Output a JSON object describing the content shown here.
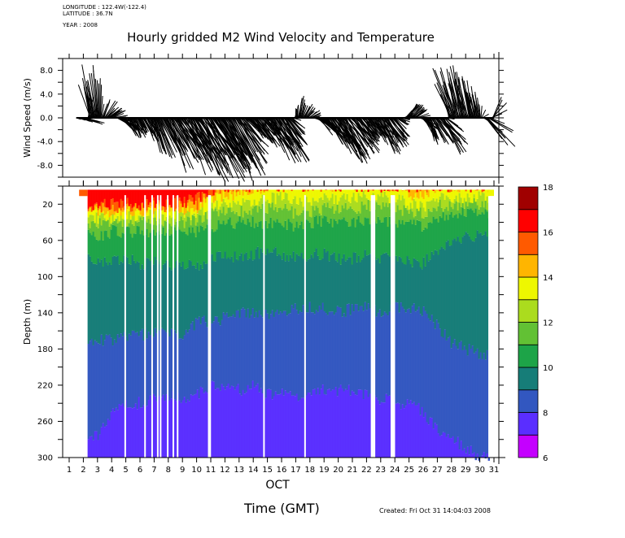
{
  "meta": {
    "longitude": "LONGITUDE : 122.4W(-122.4)",
    "latitude": "LATITUDE : 36.7N",
    "year": "YEAR : 2008"
  },
  "created": "Created: Fri Oct 31 14:04:03 2008",
  "chart_data": [
    {
      "type": "line",
      "subtype": "wind-stick-plot",
      "title": "Hourly gridded M2 Wind Velocity and Temperature",
      "ylabel": "Wind Speed (m/s)",
      "xlabel": "Time (GMT)",
      "ylim": [
        -10,
        10
      ],
      "yticks": [
        8.0,
        4.0,
        0.0,
        -4.0,
        -8.0
      ],
      "ytick_labels": [
        "8.0",
        "4.0",
        "0.0",
        "-4.0",
        "-8.0"
      ],
      "x_day_range": [
        0.5,
        31.5
      ],
      "description": "Hourly wind velocity sticks (u,v) originating from zero line; mostly southeastward (negative v) with northwesterly episodes near Oct 2-3 and Oct 28-31",
      "sticks_sampled": [
        {
          "day": 1.5,
          "u": 1.0,
          "v": -0.2
        },
        {
          "day": 2.2,
          "u": 2.5,
          "v": -1.0
        },
        {
          "day": 2.5,
          "u": -1.5,
          "v": 7.6
        },
        {
          "day": 2.8,
          "u": -1.0,
          "v": 6.0
        },
        {
          "day": 3.0,
          "u": -0.5,
          "v": 8.5
        },
        {
          "day": 3.3,
          "u": 0.5,
          "v": 3.0
        },
        {
          "day": 3.6,
          "u": 1.8,
          "v": 2.0
        },
        {
          "day": 4.0,
          "u": 2.0,
          "v": 1.0
        },
        {
          "day": 4.5,
          "u": 2.5,
          "v": -1.5
        },
        {
          "day": 5.0,
          "u": 1.5,
          "v": -2.5
        },
        {
          "day": 5.5,
          "u": 1.5,
          "v": -3.0
        },
        {
          "day": 6.0,
          "u": 1.0,
          "v": -2.0
        },
        {
          "day": 6.5,
          "u": 2.0,
          "v": -3.5
        },
        {
          "day": 7.0,
          "u": 1.5,
          "v": -5.5
        },
        {
          "day": 7.5,
          "u": 2.5,
          "v": -5.0
        },
        {
          "day": 8.0,
          "u": 3.0,
          "v": -7.5
        },
        {
          "day": 8.5,
          "u": 3.5,
          "v": -6.0
        },
        {
          "day": 9.0,
          "u": 3.5,
          "v": -7.0
        },
        {
          "day": 9.5,
          "u": 4.0,
          "v": -8.0
        },
        {
          "day": 10.0,
          "u": 4.5,
          "v": -8.5
        },
        {
          "day": 10.5,
          "u": 4.0,
          "v": -7.5
        },
        {
          "day": 11.0,
          "u": 4.5,
          "v": -8.5
        },
        {
          "day": 11.5,
          "u": 4.0,
          "v": -7.0
        },
        {
          "day": 12.0,
          "u": 4.0,
          "v": -8.0
        },
        {
          "day": 12.5,
          "u": 4.5,
          "v": -9.0
        },
        {
          "day": 13.0,
          "u": 3.5,
          "v": -6.0
        },
        {
          "day": 13.5,
          "u": 2.0,
          "v": -2.0
        },
        {
          "day": 14.0,
          "u": 3.0,
          "v": -4.0
        },
        {
          "day": 14.5,
          "u": 3.0,
          "v": -3.5
        },
        {
          "day": 15.0,
          "u": 3.5,
          "v": -5.5
        },
        {
          "day": 15.5,
          "u": 3.5,
          "v": -6.0
        },
        {
          "day": 16.0,
          "u": 3.5,
          "v": -6.5
        },
        {
          "day": 16.5,
          "u": 2.5,
          "v": -3.0
        },
        {
          "day": 17.0,
          "u": 0.0,
          "v": 1.5
        },
        {
          "day": 17.3,
          "u": 0.5,
          "v": 3.0
        },
        {
          "day": 17.6,
          "u": 1.0,
          "v": 2.0
        },
        {
          "day": 18.0,
          "u": 1.5,
          "v": 1.0
        },
        {
          "day": 18.5,
          "u": 2.5,
          "v": -2.0
        },
        {
          "day": 19.0,
          "u": 3.0,
          "v": -3.0
        },
        {
          "day": 19.5,
          "u": 3.5,
          "v": -5.5
        },
        {
          "day": 20.0,
          "u": 3.5,
          "v": -6.0
        },
        {
          "day": 20.5,
          "u": 3.5,
          "v": -6.5
        },
        {
          "day": 21.0,
          "u": 3.5,
          "v": -5.0
        },
        {
          "day": 21.5,
          "u": 2.5,
          "v": -3.5
        },
        {
          "day": 22.0,
          "u": 2.0,
          "v": -2.5
        },
        {
          "day": 22.5,
          "u": 2.5,
          "v": -3.5
        },
        {
          "day": 23.0,
          "u": 3.0,
          "v": -5.0
        },
        {
          "day": 23.5,
          "u": 2.5,
          "v": -4.0
        },
        {
          "day": 24.0,
          "u": 2.0,
          "v": -2.0
        },
        {
          "day": 24.5,
          "u": 1.0,
          "v": 0.0
        },
        {
          "day": 25.0,
          "u": 1.5,
          "v": 2.5
        },
        {
          "day": 25.5,
          "u": 2.0,
          "v": 1.0
        },
        {
          "day": 26.0,
          "u": 2.0,
          "v": -2.5
        },
        {
          "day": 26.5,
          "u": 1.0,
          "v": -3.5
        },
        {
          "day": 27.0,
          "u": 3.0,
          "v": -4.0
        },
        {
          "day": 27.5,
          "u": 3.5,
          "v": -5.0
        },
        {
          "day": 28.0,
          "u": -2.5,
          "v": 6.5
        },
        {
          "day": 28.5,
          "u": -1.5,
          "v": 7.0
        },
        {
          "day": 29.0,
          "u": -1.5,
          "v": 6.5
        },
        {
          "day": 29.5,
          "u": -1.0,
          "v": 5.0
        },
        {
          "day": 30.0,
          "u": -0.5,
          "v": 3.0
        },
        {
          "day": 30.5,
          "u": 3.5,
          "v": -4.5
        },
        {
          "day": 31.0,
          "u": 1.5,
          "v": 4.5
        }
      ]
    },
    {
      "type": "heatmap",
      "subtype": "filled-contour",
      "ylabel": "Depth (m)",
      "xlabel": "OCT",
      "x_ticks": [
        1,
        2,
        3,
        4,
        5,
        6,
        7,
        8,
        9,
        10,
        11,
        12,
        13,
        14,
        15,
        16,
        17,
        18,
        19,
        20,
        21,
        22,
        23,
        24,
        25,
        26,
        27,
        28,
        29,
        30,
        31
      ],
      "x_tick_labels": [
        "1",
        "2",
        "3",
        "4",
        "5",
        "6",
        "7",
        "8",
        "9",
        "10",
        "11",
        "12",
        "13",
        "14",
        "15",
        "16",
        "17",
        "18",
        "19",
        "20",
        "21",
        "22",
        "23",
        "24",
        "25",
        "26",
        "27",
        "28",
        "29",
        "30",
        "31"
      ],
      "x_range": [
        0.5,
        31.5
      ],
      "ylim": [
        300,
        0
      ],
      "y_ticks": [
        20,
        60,
        100,
        140,
        180,
        220,
        260,
        300
      ],
      "y_tick_labels": [
        "20",
        "60",
        "100",
        "140",
        "180",
        "220",
        "260",
        "300"
      ],
      "colorbar": {
        "levels": [
          6,
          7,
          8,
          9,
          10,
          11,
          12,
          13,
          14,
          15,
          16,
          17,
          18
        ],
        "labels": [
          "6",
          "8",
          "10",
          "12",
          "14",
          "16",
          "18"
        ],
        "colors": [
          "#c400ff",
          "#5a2eff",
          "#3257c0",
          "#167d78",
          "#1da448",
          "#62c134",
          "#abdc1e",
          "#eef700",
          "#ffb500",
          "#ff5a00",
          "#ff0000",
          "#a00000"
        ]
      },
      "isotherm_depths_by_day": {
        "days": [
          2.3,
          3,
          4,
          5,
          6,
          7,
          8,
          9,
          10,
          11,
          12,
          13,
          14,
          15,
          16,
          17,
          18,
          19,
          20,
          21,
          22,
          23,
          24,
          25,
          26,
          27,
          28,
          29,
          30,
          31
        ],
        "t8": [
          275,
          275,
          250,
          240,
          240,
          235,
          230,
          235,
          230,
          220,
          225,
          225,
          220,
          230,
          230,
          235,
          225,
          225,
          225,
          225,
          230,
          235,
          240,
          240,
          250,
          270,
          280,
          290,
          300,
          300
        ],
        "t9": [
          175,
          170,
          170,
          165,
          165,
          160,
          160,
          165,
          150,
          150,
          145,
          140,
          140,
          140,
          140,
          135,
          135,
          135,
          140,
          135,
          135,
          140,
          135,
          135,
          140,
          155,
          175,
          180,
          185,
          190
        ],
        "t10": [
          80,
          85,
          80,
          80,
          85,
          85,
          90,
          85,
          90,
          80,
          75,
          80,
          75,
          70,
          75,
          80,
          75,
          75,
          80,
          80,
          75,
          80,
          80,
          85,
          85,
          70,
          60,
          55,
          55,
          55
        ],
        "t11": [
          55,
          55,
          50,
          50,
          50,
          50,
          50,
          50,
          50,
          45,
          40,
          40,
          40,
          40,
          40,
          45,
          40,
          38,
          40,
          40,
          40,
          40,
          40,
          42,
          45,
          35,
          30,
          30,
          30,
          30
        ],
        "t12": [
          45,
          40,
          40,
          40,
          38,
          38,
          38,
          40,
          38,
          30,
          28,
          28,
          25,
          25,
          25,
          30,
          28,
          25,
          25,
          25,
          22,
          22,
          25,
          28,
          30,
          22,
          20,
          20,
          20,
          20
        ],
        "t13": [
          38,
          35,
          34,
          34,
          32,
          32,
          32,
          32,
          30,
          20,
          20,
          18,
          15,
          14,
          12,
          18,
          15,
          12,
          14,
          12,
          10,
          12,
          14,
          20,
          22,
          14,
          12,
          12,
          12,
          12
        ],
        "t14": [
          30,
          28,
          28,
          26,
          28,
          26,
          26,
          26,
          24,
          12,
          12,
          10,
          6,
          0,
          0,
          0,
          0,
          0,
          0,
          0,
          0,
          0,
          0,
          10,
          8,
          0,
          0,
          0,
          0,
          4
        ],
        "t15": [
          25,
          24,
          24,
          22,
          24,
          22,
          22,
          22,
          20,
          8,
          6,
          4,
          0,
          0,
          0,
          0,
          0,
          0,
          0,
          0,
          0,
          0,
          0,
          0,
          0,
          0,
          0,
          0,
          0,
          0
        ],
        "t16": [
          22,
          22,
          20,
          18,
          20,
          18,
          18,
          18,
          14,
          4,
          0,
          0,
          0,
          0,
          0,
          0,
          0,
          0,
          0,
          0,
          0,
          0,
          0,
          0,
          0,
          0,
          0,
          0,
          0,
          0
        ]
      },
      "missing_data_days": [
        4.9,
        6.3,
        6.8,
        7.2,
        7.4,
        7.9,
        8.3,
        8.6,
        10.8,
        10.9,
        14.7,
        17.6,
        22.3,
        22.4,
        22.5,
        23.7,
        23.8,
        23.9
      ]
    }
  ]
}
